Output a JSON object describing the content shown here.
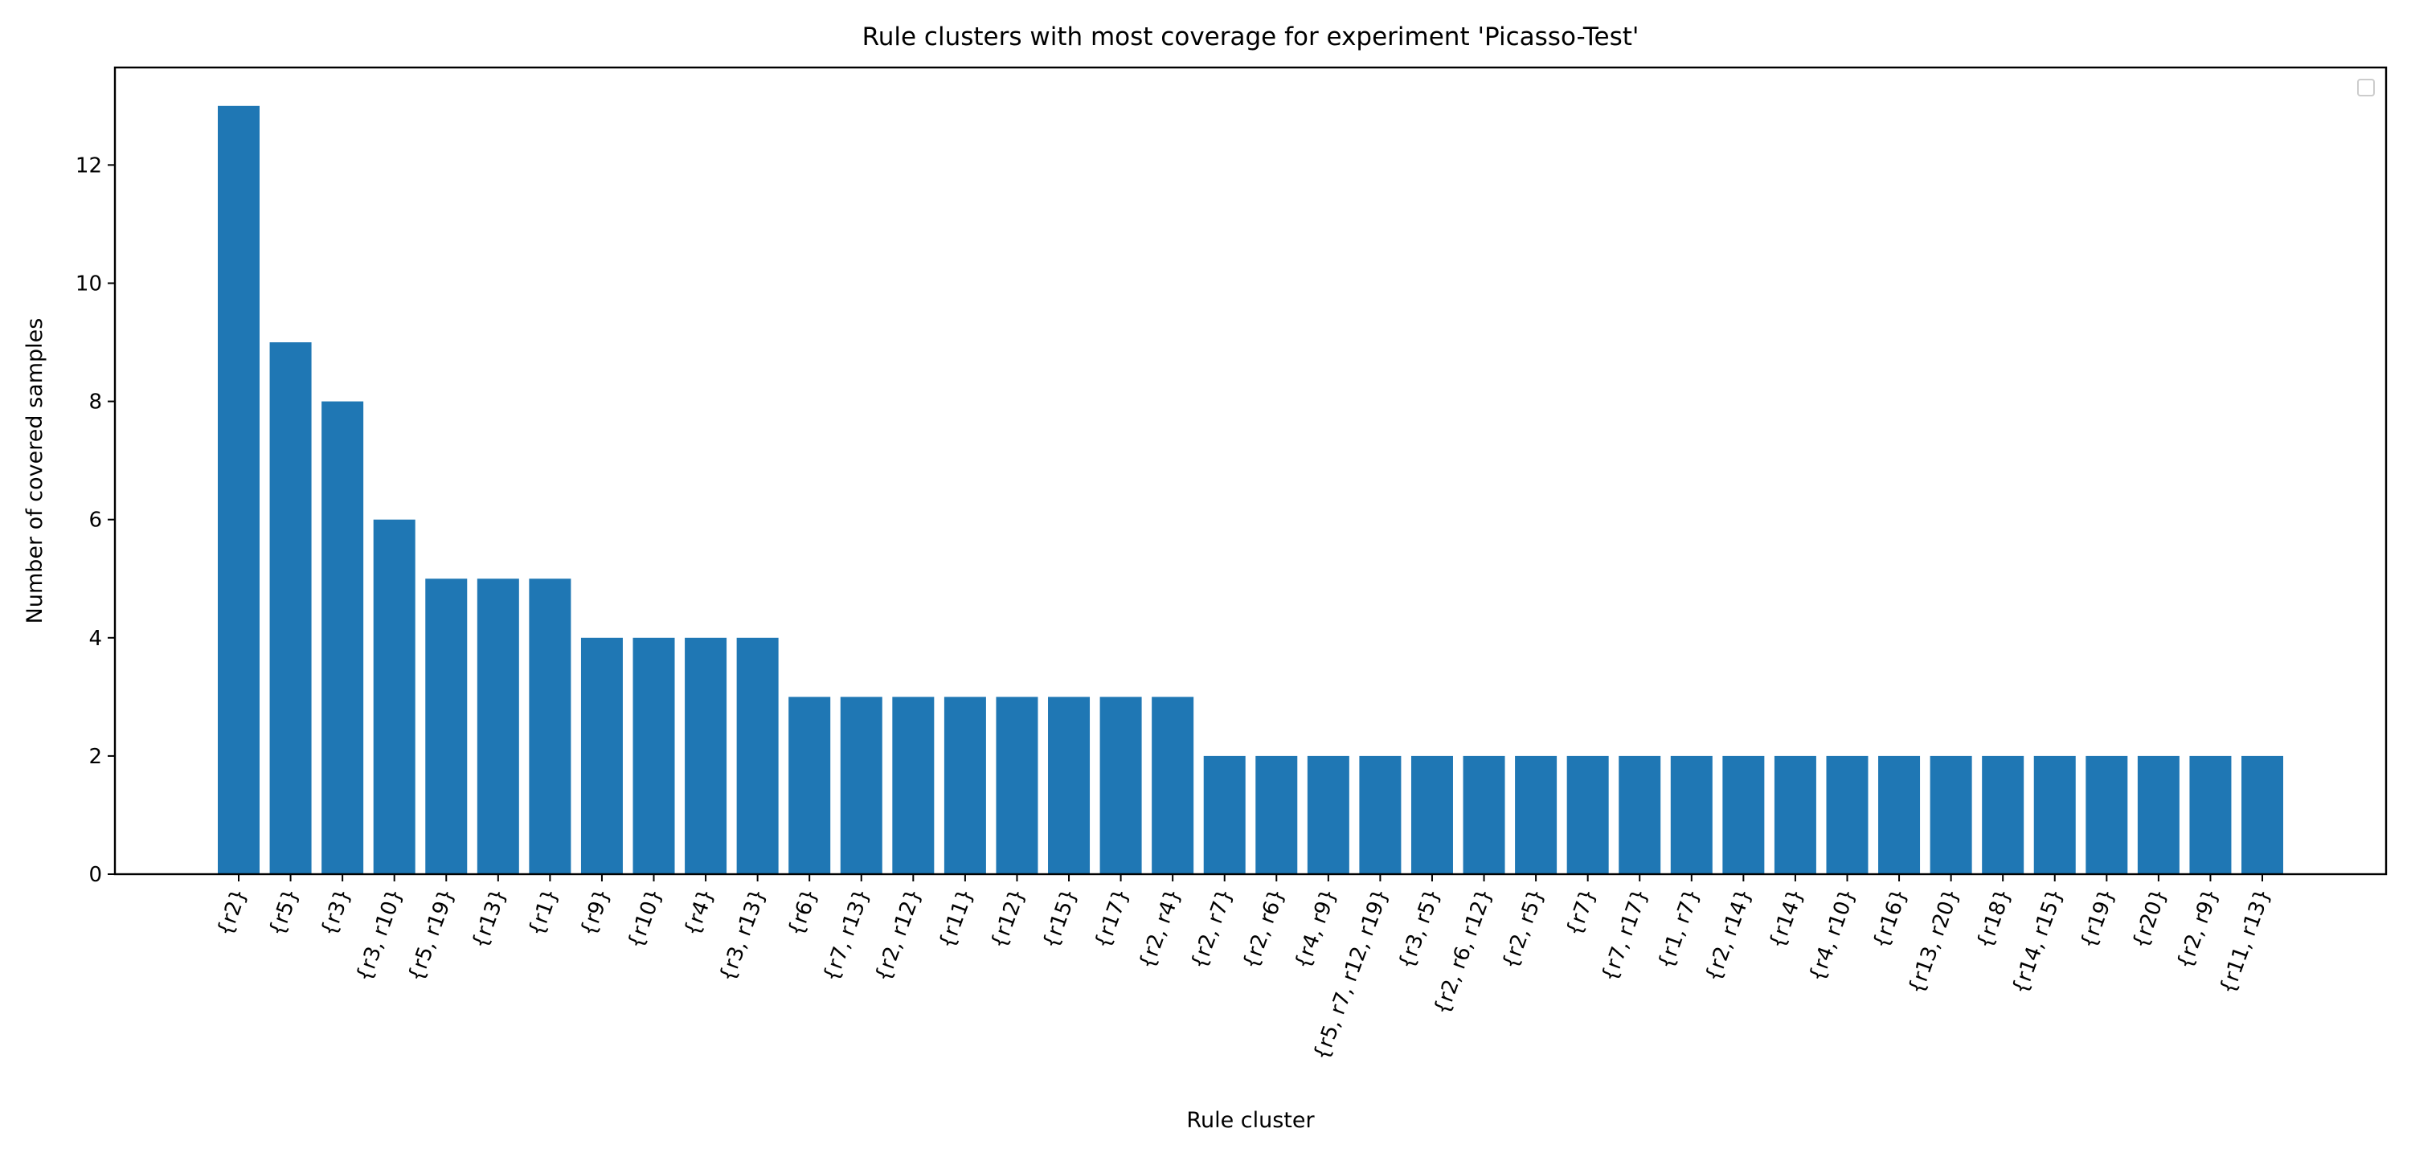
{
  "chart_data": {
    "type": "bar",
    "title": "Rule clusters with most coverage for experiment 'Picasso-Test'",
    "xlabel": "Rule cluster",
    "ylabel": "Number of covered samples",
    "ylim": [
      0,
      13.65
    ],
    "yticks": [
      0,
      2,
      4,
      6,
      8,
      10,
      12
    ],
    "grid": false,
    "legend": "top-right",
    "bar_color": "#1f77b4",
    "categories": [
      "{r2}",
      "{r5}",
      "{r3}",
      "{r3, r10}",
      "{r5, r19}",
      "{r13}",
      "{r1}",
      "{r9}",
      "{r10}",
      "{r4}",
      "{r3, r13}",
      "{r6}",
      "{r7, r13}",
      "{r2, r12}",
      "{r11}",
      "{r12}",
      "{r15}",
      "{r17}",
      "{r2, r4}",
      "{r2, r7}",
      "{r2, r6}",
      "{r4, r9}",
      "{r5, r7, r12, r19}",
      "{r3, r5}",
      "{r2, r6, r12}",
      "{r2, r5}",
      "{r7}",
      "{r7, r17}",
      "{r1, r7}",
      "{r2, r14}",
      "{r14}",
      "{r4, r10}",
      "{r16}",
      "{r13, r20}",
      "{r18}",
      "{r14, r15}",
      "{r19}",
      "{r20}",
      "{r2, r9}",
      "{r11, r13}"
    ],
    "values": [
      13,
      9,
      8,
      6,
      5,
      5,
      5,
      4,
      4,
      4,
      4,
      3,
      3,
      3,
      3,
      3,
      3,
      3,
      3,
      2,
      2,
      2,
      2,
      2,
      2,
      2,
      2,
      2,
      2,
      2,
      2,
      2,
      2,
      2,
      2,
      2,
      2,
      2,
      2,
      2
    ]
  }
}
